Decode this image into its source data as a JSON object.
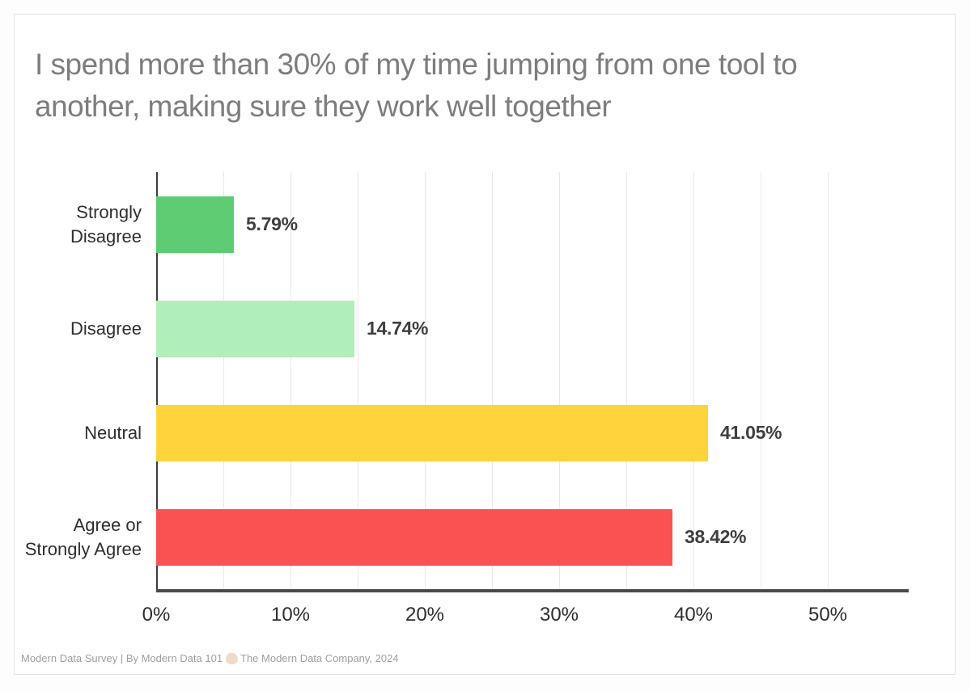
{
  "title": {
    "lines": [
      "I spend more than 30% of my time jumping from one tool to",
      "another, making sure they work well together"
    ],
    "color": "#7d7d7d"
  },
  "chart_data": {
    "type": "bar",
    "orientation": "horizontal",
    "title": "I spend more than 30% of my time jumping from one tool to another, making sure they work well together",
    "categories": [
      "Strongly\nDisagree",
      "Disagree",
      "Neutral",
      "Agree or\nStrongly Agree"
    ],
    "values": [
      5.79,
      14.74,
      41.05,
      38.42
    ],
    "value_labels": [
      "5.79%",
      "14.74%",
      "41.05%",
      "38.42%"
    ],
    "bar_colors": [
      "#5ecc72",
      "#b0eebc",
      "#fed33c",
      "#fa5252"
    ],
    "x_ticks": [
      "0%",
      "10%",
      "20%",
      "30%",
      "40%",
      "50%"
    ],
    "x_tick_values": [
      0,
      10,
      20,
      30,
      40,
      50
    ],
    "xlim": [
      0,
      56
    ],
    "gridline_step_percent": 5,
    "grid": "vertical-light",
    "xlabel": "",
    "ylabel": ""
  },
  "footer": {
    "text_before": "Modern Data Survey | By Modern Data 101 ",
    "emoji": "🤝",
    "text_after": " The Modern Data Company, 2024"
  }
}
